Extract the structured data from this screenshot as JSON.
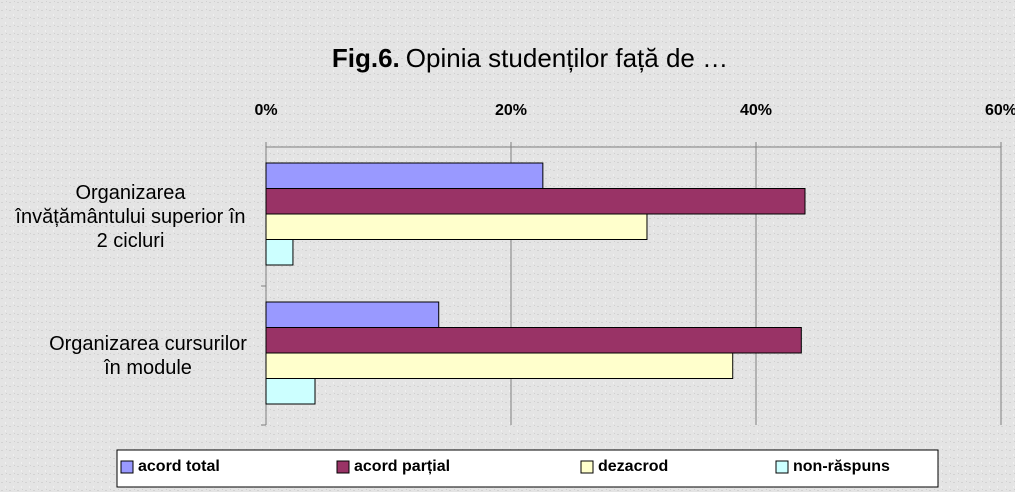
{
  "chart_data": {
    "type": "hbar",
    "title_label": "Fig.6.",
    "title": "Opinia studenților față de …",
    "categories": [
      "Organizarea învățământului superior în 2 cicluri",
      "Organizarea cursurilor în module"
    ],
    "series": [
      {
        "name": "acord total",
        "color": "#9999ff",
        "values": [
          22.6,
          14.1
        ]
      },
      {
        "name": "acord parțial",
        "color": "#993366",
        "values": [
          44.0,
          43.7
        ]
      },
      {
        "name": "dezacrod",
        "color": "#ffffcc",
        "values": [
          31.1,
          38.1
        ]
      },
      {
        "name": "non-răspuns",
        "color": "#ccffff",
        "values": [
          2.2,
          4.0
        ]
      }
    ],
    "xlim": [
      0,
      60
    ],
    "xticks": [
      {
        "value": 0,
        "label": "0%"
      },
      {
        "value": 20,
        "label": "20%"
      },
      {
        "value": 40,
        "label": "40%"
      },
      {
        "value": 60,
        "label": "60%"
      }
    ],
    "grid": true,
    "legend": "bottom"
  }
}
